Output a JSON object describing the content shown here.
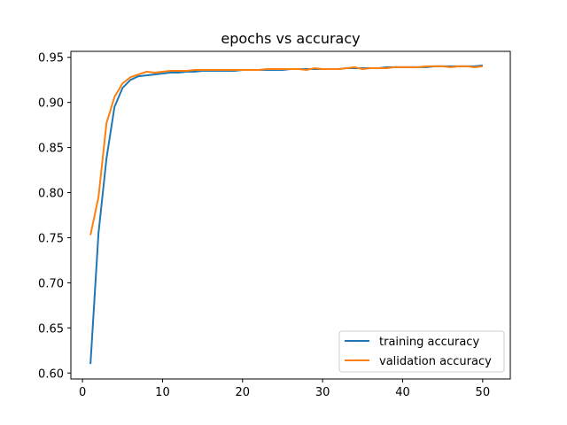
{
  "chart_data": {
    "type": "line",
    "title": "epochs vs accuracy",
    "xlabel": "",
    "ylabel": "",
    "xlim": [
      -1.45,
      53.45
    ],
    "ylim": [
      0.5934,
      0.9566
    ],
    "xticks": [
      0,
      10,
      20,
      30,
      40,
      50
    ],
    "yticks": [
      0.6,
      0.65,
      0.7,
      0.75,
      0.8,
      0.85,
      0.9,
      0.95
    ],
    "ytick_labels": [
      "0.60",
      "0.65",
      "0.70",
      "0.75",
      "0.80",
      "0.85",
      "0.90",
      "0.95"
    ],
    "xtick_labels": [
      "0",
      "10",
      "20",
      "30",
      "40",
      "50"
    ],
    "grid": false,
    "legend_position": "bottom-right",
    "x": [
      1,
      2,
      3,
      4,
      5,
      6,
      7,
      8,
      9,
      10,
      11,
      12,
      13,
      14,
      15,
      16,
      17,
      18,
      19,
      20,
      21,
      22,
      23,
      24,
      25,
      26,
      27,
      28,
      29,
      30,
      31,
      32,
      33,
      34,
      35,
      36,
      37,
      38,
      39,
      40,
      41,
      42,
      43,
      44,
      45,
      46,
      47,
      48,
      49,
      50
    ],
    "series": [
      {
        "name": "training accuracy",
        "color": "#1f77b4",
        "values": [
          0.61,
          0.755,
          0.838,
          0.895,
          0.916,
          0.925,
          0.929,
          0.93,
          0.931,
          0.932,
          0.933,
          0.933,
          0.934,
          0.934,
          0.935,
          0.935,
          0.935,
          0.935,
          0.935,
          0.936,
          0.936,
          0.936,
          0.936,
          0.936,
          0.936,
          0.937,
          0.937,
          0.937,
          0.937,
          0.937,
          0.937,
          0.937,
          0.938,
          0.938,
          0.938,
          0.938,
          0.938,
          0.939,
          0.939,
          0.939,
          0.939,
          0.939,
          0.939,
          0.94,
          0.94,
          0.94,
          0.94,
          0.94,
          0.94,
          0.941
        ]
      },
      {
        "name": "validation accuracy",
        "color": "#ff7f0e",
        "values": [
          0.753,
          0.795,
          0.877,
          0.906,
          0.921,
          0.928,
          0.931,
          0.934,
          0.933,
          0.934,
          0.935,
          0.935,
          0.935,
          0.936,
          0.936,
          0.936,
          0.936,
          0.936,
          0.936,
          0.936,
          0.936,
          0.936,
          0.937,
          0.937,
          0.937,
          0.937,
          0.937,
          0.936,
          0.938,
          0.937,
          0.937,
          0.937,
          0.938,
          0.939,
          0.937,
          0.938,
          0.938,
          0.938,
          0.939,
          0.939,
          0.939,
          0.939,
          0.94,
          0.94,
          0.94,
          0.939,
          0.94,
          0.94,
          0.939,
          0.94
        ]
      }
    ]
  }
}
